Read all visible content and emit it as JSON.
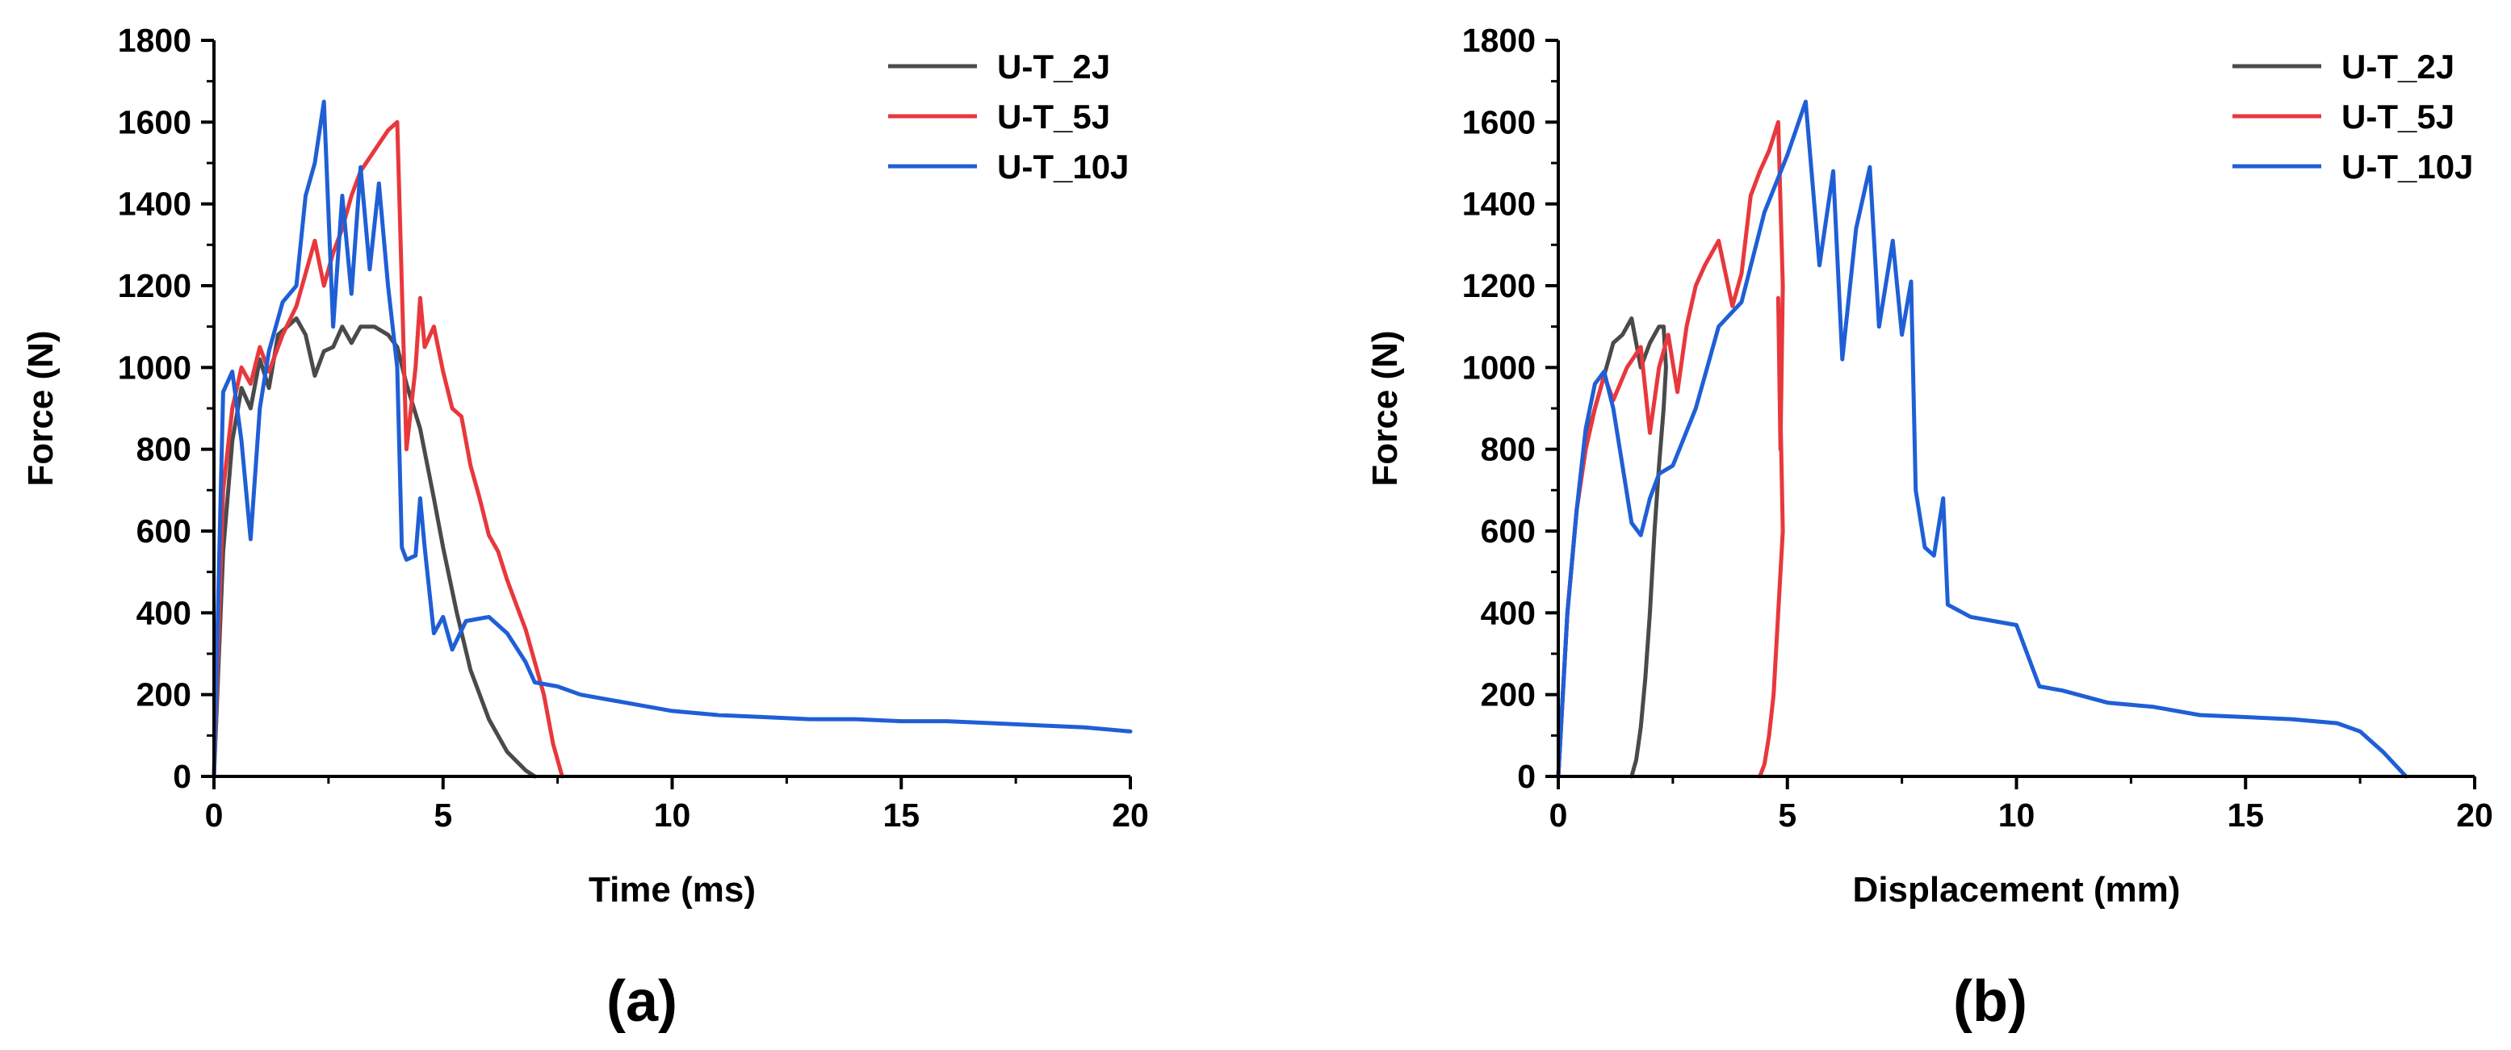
{
  "chart_data": [
    {
      "type": "line",
      "panel": "(a)",
      "xlabel": "Time (ms)",
      "ylabel": "Force (N)",
      "xlim": [
        0,
        20
      ],
      "ylim": [
        0,
        1800
      ],
      "xticks": [
        0,
        5,
        10,
        15,
        20
      ],
      "yticks": [
        0,
        200,
        400,
        600,
        800,
        1000,
        1200,
        1400,
        1600,
        1800
      ],
      "grid": false,
      "legend_position": "top-right",
      "series": [
        {
          "name": "U-T_2J",
          "color": "#4a4a4a",
          "x": [
            0,
            0.2,
            0.4,
            0.6,
            0.8,
            1.0,
            1.2,
            1.4,
            1.6,
            1.8,
            2.0,
            2.2,
            2.4,
            2.6,
            2.8,
            3.0,
            3.2,
            3.5,
            3.8,
            4.0,
            4.2,
            4.5,
            4.8,
            5.0,
            5.3,
            5.6,
            6.0,
            6.4,
            6.8,
            7.0
          ],
          "y": [
            0,
            550,
            820,
            950,
            900,
            1020,
            950,
            1080,
            1100,
            1120,
            1080,
            980,
            1040,
            1050,
            1100,
            1060,
            1100,
            1100,
            1080,
            1050,
            960,
            850,
            680,
            560,
            400,
            260,
            140,
            60,
            15,
            0
          ]
        },
        {
          "name": "U-T_5J",
          "color": "#e8383d",
          "x": [
            0,
            0.2,
            0.4,
            0.6,
            0.8,
            1.0,
            1.2,
            1.5,
            1.8,
            2.0,
            2.2,
            2.4,
            2.6,
            2.8,
            3.0,
            3.2,
            3.5,
            3.8,
            4.0,
            4.1,
            4.2,
            4.4,
            4.5,
            4.6,
            4.8,
            5.0,
            5.2,
            5.4,
            5.6,
            5.8,
            6.0,
            6.2,
            6.4,
            6.6,
            6.8,
            7.0,
            7.2,
            7.4,
            7.6
          ],
          "y": [
            0,
            700,
            900,
            1000,
            960,
            1050,
            990,
            1080,
            1150,
            1230,
            1310,
            1200,
            1280,
            1340,
            1420,
            1480,
            1530,
            1580,
            1600,
            1200,
            800,
            1000,
            1170,
            1050,
            1100,
            990,
            900,
            880,
            760,
            680,
            590,
            550,
            480,
            420,
            360,
            280,
            200,
            80,
            0
          ]
        },
        {
          "name": "U-T_10J",
          "color": "#1f5fd6",
          "x": [
            0,
            0.2,
            0.4,
            0.6,
            0.8,
            1.0,
            1.2,
            1.5,
            1.8,
            2.0,
            2.2,
            2.4,
            2.6,
            2.8,
            3.0,
            3.2,
            3.4,
            3.6,
            3.8,
            4.0,
            4.1,
            4.2,
            4.4,
            4.5,
            4.6,
            4.8,
            5.0,
            5.2,
            5.5,
            6.0,
            6.4,
            6.8,
            7.0,
            7.5,
            8.0,
            9.0,
            10.0,
            11.0,
            12.0,
            13.0,
            14.0,
            15.0,
            16.0,
            17.0,
            18.0,
            19.0,
            20.0
          ],
          "y": [
            0,
            940,
            990,
            820,
            580,
            900,
            1040,
            1160,
            1200,
            1420,
            1500,
            1650,
            1100,
            1420,
            1180,
            1490,
            1240,
            1450,
            1200,
            1000,
            560,
            530,
            540,
            680,
            560,
            350,
            390,
            310,
            380,
            390,
            350,
            280,
            230,
            220,
            200,
            180,
            160,
            150,
            145,
            140,
            140,
            135,
            135,
            130,
            125,
            120,
            110
          ]
        }
      ]
    },
    {
      "type": "line",
      "panel": "(b)",
      "xlabel": "Displacement (mm)",
      "ylabel": "Force (N)",
      "xlim": [
        0,
        20
      ],
      "ylim": [
        0,
        1800
      ],
      "xticks": [
        0,
        5,
        10,
        15,
        20
      ],
      "yticks": [
        0,
        200,
        400,
        600,
        800,
        1000,
        1200,
        1400,
        1600,
        1800
      ],
      "grid": false,
      "legend_position": "top-right",
      "series": [
        {
          "name": "U-T_2J",
          "color": "#4a4a4a",
          "x": [
            0,
            0.2,
            0.4,
            0.6,
            0.8,
            1.0,
            1.2,
            1.4,
            1.6,
            1.8,
            2.0,
            2.2,
            2.3,
            2.35,
            2.3,
            2.2,
            2.1,
            2.0,
            1.9,
            1.8,
            1.7,
            1.6
          ],
          "y": [
            0,
            400,
            650,
            820,
            900,
            980,
            1060,
            1080,
            1120,
            1000,
            1060,
            1100,
            1100,
            1000,
            900,
            760,
            600,
            400,
            240,
            120,
            40,
            0
          ]
        },
        {
          "name": "U-T_5J",
          "color": "#e8383d",
          "x": [
            0,
            0.2,
            0.4,
            0.6,
            0.8,
            1.0,
            1.2,
            1.5,
            1.8,
            2.0,
            2.2,
            2.4,
            2.6,
            2.8,
            3.0,
            3.2,
            3.5,
            3.8,
            4.0,
            4.2,
            4.4,
            4.6,
            4.8,
            4.9,
            4.85,
            4.8,
            4.9,
            4.8,
            4.7,
            4.6,
            4.5,
            4.4
          ],
          "y": [
            0,
            400,
            650,
            800,
            900,
            980,
            920,
            1000,
            1050,
            840,
            1000,
            1080,
            940,
            1100,
            1200,
            1250,
            1310,
            1150,
            1230,
            1420,
            1480,
            1530,
            1600,
            1200,
            800,
            1170,
            600,
            400,
            200,
            100,
            30,
            0
          ]
        },
        {
          "name": "U-T_10J",
          "color": "#1f5fd6",
          "x": [
            0,
            0.2,
            0.4,
            0.6,
            0.8,
            1.0,
            1.2,
            1.4,
            1.6,
            1.8,
            2.0,
            2.2,
            2.5,
            3.0,
            3.5,
            4.0,
            4.5,
            5.0,
            5.4,
            5.7,
            6.0,
            6.2,
            6.5,
            6.8,
            7.0,
            7.3,
            7.5,
            7.7,
            7.8,
            8.0,
            8.2,
            8.4,
            8.5,
            9.0,
            9.5,
            10.0,
            10.5,
            11.0,
            12.0,
            13.0,
            14.0,
            15.0,
            16.0,
            17.0,
            17.5,
            18.0,
            18.5
          ],
          "y": [
            0,
            400,
            650,
            850,
            960,
            990,
            900,
            760,
            620,
            590,
            680,
            740,
            760,
            900,
            1100,
            1160,
            1380,
            1520,
            1650,
            1250,
            1480,
            1020,
            1340,
            1490,
            1100,
            1310,
            1080,
            1210,
            700,
            560,
            540,
            680,
            420,
            390,
            380,
            370,
            220,
            210,
            180,
            170,
            150,
            145,
            140,
            130,
            110,
            60,
            0
          ]
        }
      ]
    }
  ]
}
